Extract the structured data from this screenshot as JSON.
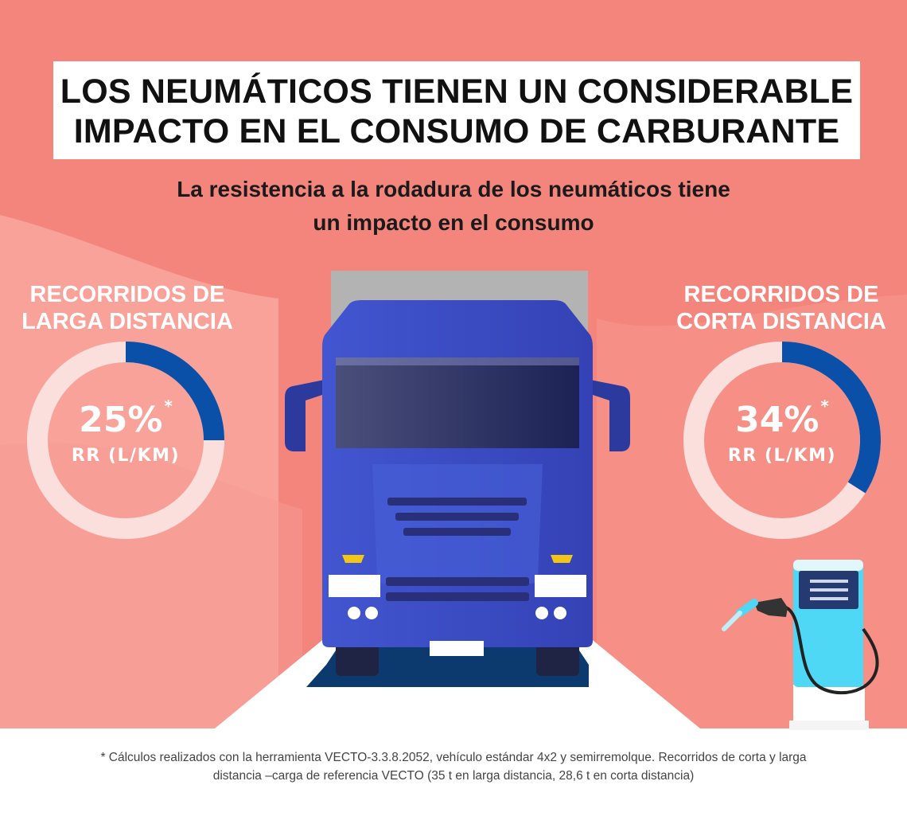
{
  "header": {
    "title_line1": "LOS NEUMÁTICOS TIENEN UN CONSIDERABLE",
    "title_line2": "IMPACTO EN EL CONSUMO DE CARBURANTE",
    "subtitle_line1": "La resistencia a la rodadura de los neumáticos tiene",
    "subtitle_line2": "un impacto en el consumo"
  },
  "long_distance": {
    "heading_line1": "RECORRIDOS DE",
    "heading_line2": "LARGA DISTANCIA",
    "value": "25%",
    "asterisk": "*",
    "unit": "RR (L/KM)",
    "fraction": 0.25
  },
  "short_distance": {
    "heading_line1": "RECORRIDOS DE",
    "heading_line2": "CORTA DISTANCIA",
    "value": "34%",
    "asterisk": "*",
    "unit": "RR (L/KM)",
    "fraction": 0.34
  },
  "footnote": {
    "line1": "* Cálculos realizados con la herramienta VECTO-3.3.8.2052, vehículo estándar 4x2 y semirremolque. Recorridos de corta y larga",
    "line2": "distancia –carga de referencia VECTO (35 t en larga distancia, 28,6 t en corta distancia)"
  },
  "illustrations": {
    "truck": "truck-front-icon",
    "pump": "fuel-pump-icon"
  },
  "colors": {
    "background": "#f4857c",
    "background_light": "#f8a9a2",
    "donut_fill": "#0a4fa8",
    "donut_track": "#fadfdc",
    "truck_body": "#3f52c8",
    "pump_body": "#4fd8f5"
  }
}
